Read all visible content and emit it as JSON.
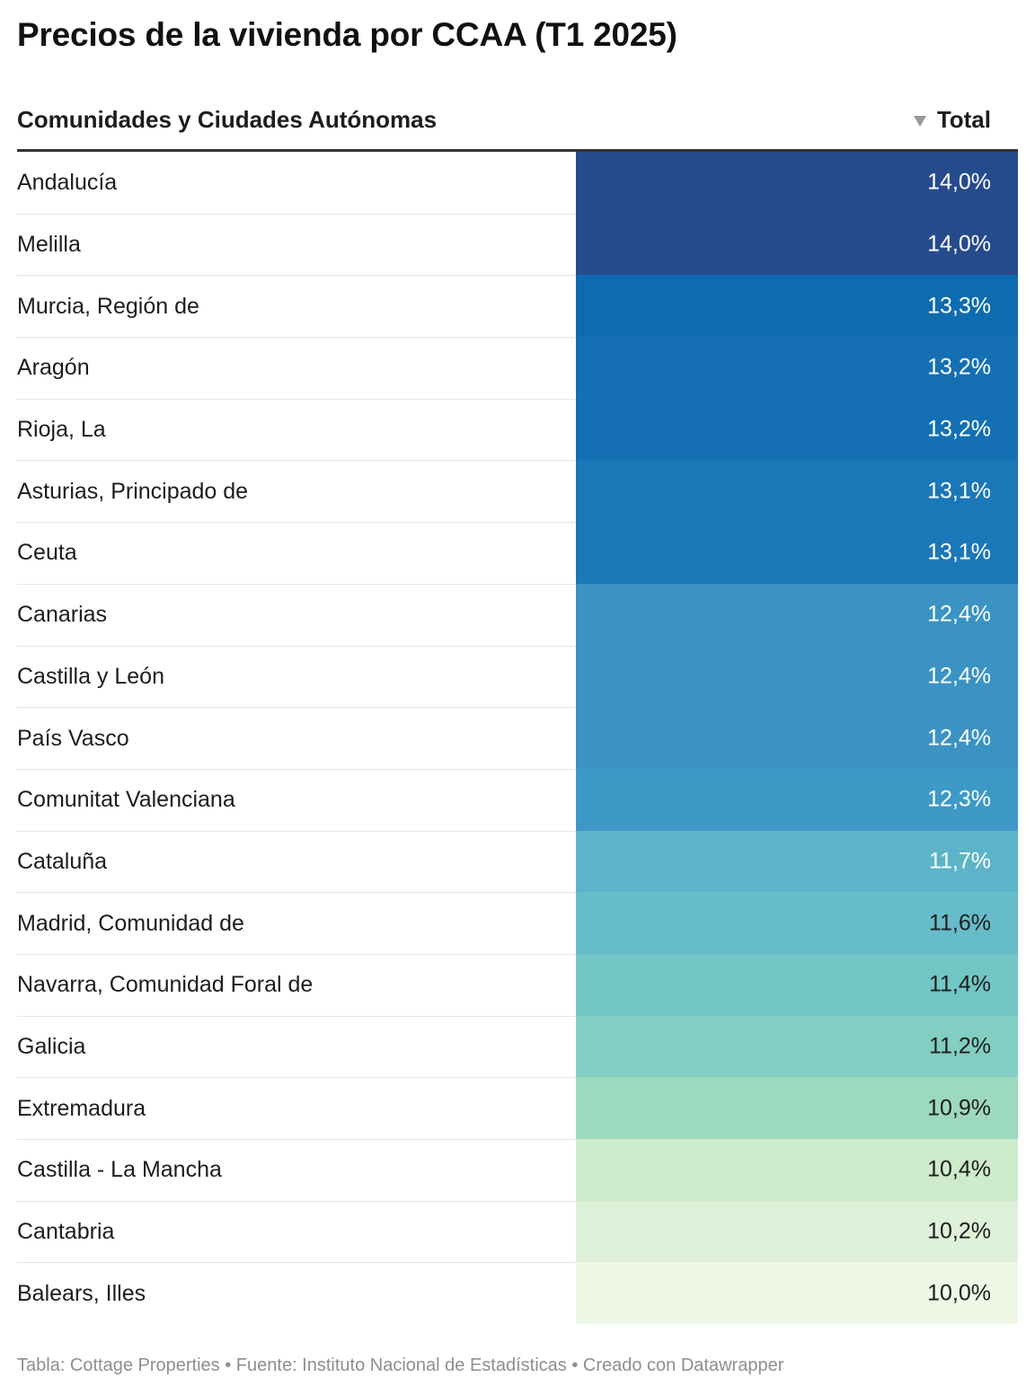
{
  "title": "Precios de la vivienda por CCAA (T1 2025)",
  "table": {
    "header_label": "Comunidades y Ciudades Autónomas",
    "header_total": "Total",
    "sort_icon": "sort-descending-icon"
  },
  "footer": "Tabla: Cottage Properties • Fuente: Instituto Nacional de Estadísticas • Creado con Datawrapper",
  "chart_data": {
    "type": "table",
    "columns": [
      "Comunidades y Ciudades Autónomas",
      "Total"
    ],
    "sorted_by": "Total",
    "sort_order": "descending",
    "rows": [
      {
        "label": "Andalucía",
        "value": 14.0,
        "display": "14,0%",
        "color": "#264b8d",
        "text_color": "#ffffff"
      },
      {
        "label": "Melilla",
        "value": 14.0,
        "display": "14,0%",
        "color": "#264b8d",
        "text_color": "#ffffff"
      },
      {
        "label": "Murcia, Región de",
        "value": 13.3,
        "display": "13,3%",
        "color": "#0f6bb0",
        "text_color": "#ffffff"
      },
      {
        "label": "Aragón",
        "value": 13.2,
        "display": "13,2%",
        "color": "#1470b3",
        "text_color": "#ffffff"
      },
      {
        "label": "Rioja, La",
        "value": 13.2,
        "display": "13,2%",
        "color": "#1470b3",
        "text_color": "#ffffff"
      },
      {
        "label": "Asturias, Principado de",
        "value": 13.1,
        "display": "13,1%",
        "color": "#1a77b8",
        "text_color": "#ffffff"
      },
      {
        "label": "Ceuta",
        "value": 13.1,
        "display": "13,1%",
        "color": "#1a77b8",
        "text_color": "#ffffff"
      },
      {
        "label": "Canarias",
        "value": 12.4,
        "display": "12,4%",
        "color": "#3a93c3",
        "text_color": "#ffffff"
      },
      {
        "label": "Castilla y León",
        "value": 12.4,
        "display": "12,4%",
        "color": "#3a93c3",
        "text_color": "#ffffff"
      },
      {
        "label": "País Vasco",
        "value": 12.4,
        "display": "12,4%",
        "color": "#3a93c3",
        "text_color": "#ffffff"
      },
      {
        "label": "Comunitat Valenciana",
        "value": 12.3,
        "display": "12,3%",
        "color": "#3e99c6",
        "text_color": "#ffffff"
      },
      {
        "label": "Cataluña",
        "value": 11.7,
        "display": "11,7%",
        "color": "#5db4c8",
        "text_color": "#ffffff"
      },
      {
        "label": "Madrid, Comunidad de",
        "value": 11.6,
        "display": "11,6%",
        "color": "#66bcc8",
        "text_color": "#1d1d1d"
      },
      {
        "label": "Navarra, Comunidad Foral de",
        "value": 11.4,
        "display": "11,4%",
        "color": "#72c6c5",
        "text_color": "#1d1d1d"
      },
      {
        "label": "Galicia",
        "value": 11.2,
        "display": "11,2%",
        "color": "#82cec2",
        "text_color": "#1d1d1d"
      },
      {
        "label": "Extremadura",
        "value": 10.9,
        "display": "10,9%",
        "color": "#9cd9be",
        "text_color": "#1d1d1d"
      },
      {
        "label": "Castilla - La Mancha",
        "value": 10.4,
        "display": "10,4%",
        "color": "#ceebcc",
        "text_color": "#1d1d1d"
      },
      {
        "label": "Cantabria",
        "value": 10.2,
        "display": "10,2%",
        "color": "#def1d8",
        "text_color": "#1d1d1d"
      },
      {
        "label": "Balears, Illes",
        "value": 10.0,
        "display": "10,0%",
        "color": "#eef7e6",
        "text_color": "#1d1d1d"
      }
    ]
  }
}
